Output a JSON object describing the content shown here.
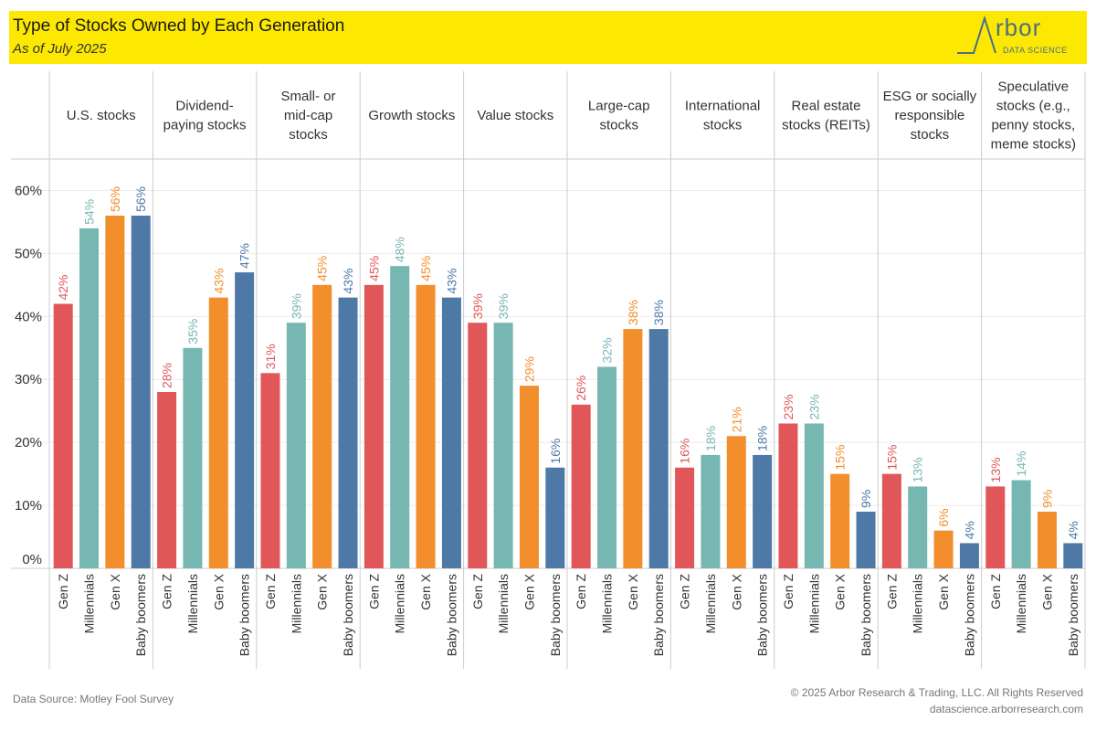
{
  "header": {
    "title": "Type of Stocks Owned by Each Generation",
    "subtitle": "As of July 2025",
    "logo_text": "rbor",
    "logo_sub": "DATA SCIENCE"
  },
  "footer": {
    "source": "Data Source: Motley Fool Survey",
    "copyright": "© 2025 Arbor Research & Trading, LLC. All Rights Reserved",
    "website": "datascience.arborresearch.com"
  },
  "colors": {
    "banner": "#fce800",
    "Gen Z": "#e15759",
    "Millennials": "#76b7b2",
    "Gen X": "#f28e2b",
    "Baby boomers": "#4e79a7"
  },
  "chart_data": {
    "type": "bar",
    "title": "Type of Stocks Owned by Each Generation",
    "subtitle": "As of July 2025",
    "xlabel": "",
    "ylabel": "",
    "ylim": [
      0,
      0.65
    ],
    "yticks": [
      0,
      0.1,
      0.2,
      0.3,
      0.4,
      0.5,
      0.6
    ],
    "ytick_labels": [
      "0%",
      "10%",
      "20%",
      "30%",
      "40%",
      "50%",
      "60%"
    ],
    "grid": true,
    "legend": "none",
    "generations": [
      "Gen Z",
      "Millennials",
      "Gen X",
      "Baby boomers"
    ],
    "panels": [
      {
        "header": [
          "U.S. stocks"
        ],
        "values": [
          0.42,
          0.54,
          0.56,
          0.56
        ],
        "labels": [
          "42%",
          "54%",
          "56%",
          "56%"
        ]
      },
      {
        "header": [
          "Dividend-",
          "paying stocks"
        ],
        "values": [
          0.28,
          0.35,
          0.43,
          0.47
        ],
        "labels": [
          "28%",
          "35%",
          "43%",
          "47%"
        ]
      },
      {
        "header": [
          "Small- or",
          "mid-cap",
          "stocks"
        ],
        "values": [
          0.31,
          0.39,
          0.45,
          0.43
        ],
        "labels": [
          "31%",
          "39%",
          "45%",
          "43%"
        ]
      },
      {
        "header": [
          "Growth stocks"
        ],
        "values": [
          0.45,
          0.48,
          0.45,
          0.43
        ],
        "labels": [
          "45%",
          "48%",
          "45%",
          "43%"
        ]
      },
      {
        "header": [
          "Value stocks"
        ],
        "values": [
          0.39,
          0.39,
          0.29,
          0.16
        ],
        "labels": [
          "39%",
          "39%",
          "29%",
          "16%"
        ]
      },
      {
        "header": [
          "Large-cap",
          "stocks"
        ],
        "values": [
          0.26,
          0.32,
          0.38,
          0.38
        ],
        "labels": [
          "26%",
          "32%",
          "38%",
          "38%"
        ]
      },
      {
        "header": [
          "International",
          "stocks"
        ],
        "values": [
          0.16,
          0.18,
          0.21,
          0.18
        ],
        "labels": [
          "16%",
          "18%",
          "21%",
          "18%"
        ]
      },
      {
        "header": [
          "Real estate",
          "stocks (REITs)"
        ],
        "values": [
          0.23,
          0.23,
          0.15,
          0.09
        ],
        "labels": [
          "23%",
          "23%",
          "15%",
          "9%"
        ]
      },
      {
        "header": [
          "ESG or socially",
          "responsible",
          "stocks"
        ],
        "values": [
          0.15,
          0.13,
          0.06,
          0.04
        ],
        "labels": [
          "15%",
          "13%",
          "6%",
          "4%"
        ]
      },
      {
        "header": [
          "Speculative",
          "stocks (e.g.,",
          "penny stocks,",
          "meme stocks)"
        ],
        "values": [
          0.13,
          0.14,
          0.09,
          0.04
        ],
        "labels": [
          "13%",
          "14%",
          "9%",
          "4%"
        ]
      }
    ]
  }
}
